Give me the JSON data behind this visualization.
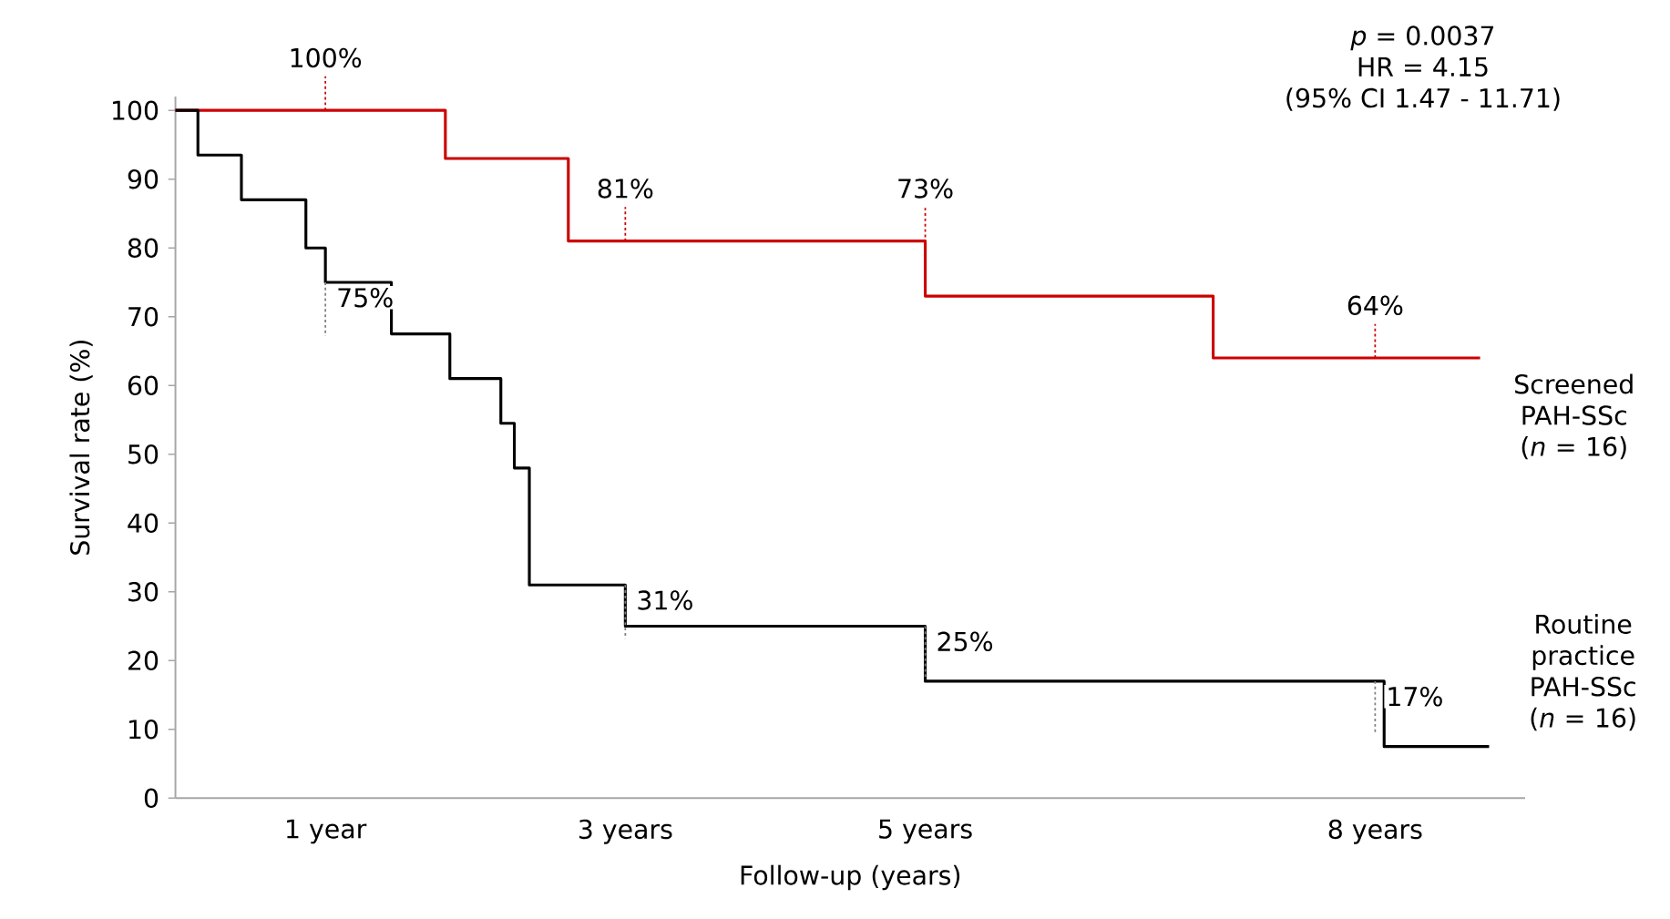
{
  "chart_data": {
    "type": "step",
    "xlabel": "Follow-up (years)",
    "ylabel": "Survival rate (%)",
    "xlim": [
      0,
      9
    ],
    "ylim": [
      0,
      102
    ],
    "xticks": [
      {
        "value": 1,
        "label": "1 year"
      },
      {
        "value": 3,
        "label": "3 years"
      },
      {
        "value": 5,
        "label": "5 years"
      },
      {
        "value": 8,
        "label": "8 years"
      }
    ],
    "yticks": [
      0,
      10,
      20,
      30,
      40,
      50,
      60,
      70,
      80,
      90,
      100
    ],
    "legend": false,
    "grid": false,
    "series": [
      {
        "name": "Screened PAH-SSc (*n* = 16)",
        "color": "#cc0000",
        "x": [
          0,
          1.8,
          2.62,
          5.0,
          6.92,
          8.7
        ],
        "values": [
          100,
          93,
          81,
          73,
          64,
          64
        ]
      },
      {
        "name": "Routine practice PAH-SSc (*n* = 16)",
        "color": "#000000",
        "x": [
          0,
          0.15,
          0.44,
          0.87,
          1.0,
          1.44,
          1.83,
          2.17,
          2.26,
          2.36,
          3.0,
          5.0,
          8.06,
          8.76
        ],
        "values": [
          100,
          93.5,
          87,
          80,
          75,
          67.5,
          61,
          54.5,
          48,
          31,
          25,
          17,
          7.5,
          7.5
        ]
      }
    ],
    "annotations": [
      "*p* = 0.0037",
      "HR = 4.15",
      "(95% CI 1.47 - 11.71)",
      {
        "text": "100%",
        "x": 1,
        "y": 100
      },
      {
        "text": "81%",
        "x": 3,
        "y": 81
      },
      {
        "text": "73%",
        "x": 5,
        "y": 73
      },
      {
        "text": "64%",
        "x": 8,
        "y": 64
      },
      {
        "text": "75%",
        "x": 1,
        "y": 75
      },
      {
        "text": "31%",
        "x": 3,
        "y": 31
      },
      {
        "text": "25%",
        "x": 5,
        "y": 25
      },
      {
        "text": "17%",
        "x": 8,
        "y": 17
      }
    ]
  }
}
